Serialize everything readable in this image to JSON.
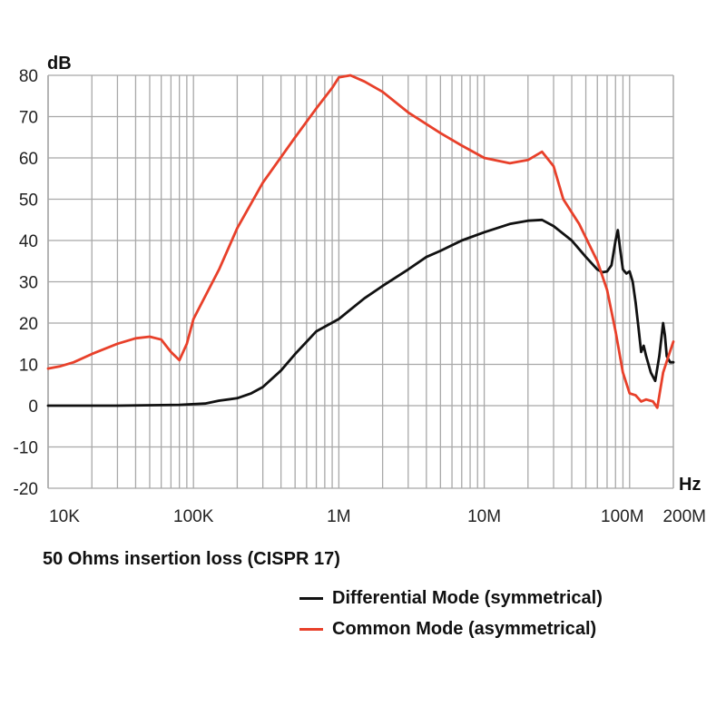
{
  "caption": "50 Ohms insertion loss (CISPR 17)",
  "colors": {
    "differential": "#111111",
    "common": "#e8402a",
    "grid": "#a8a8a8"
  },
  "chart_data": {
    "type": "line",
    "title": "50 Ohms insertion loss (CISPR 17)",
    "xlabel": "Hz",
    "ylabel": "dB",
    "x_scale": "log",
    "xlim": [
      10000,
      200000000
    ],
    "ylim": [
      -20,
      80
    ],
    "grid": true,
    "legend_position": "bottom-right",
    "x_ticks": [
      {
        "value": 10000,
        "label": "10K"
      },
      {
        "value": 100000,
        "label": "100K"
      },
      {
        "value": 1000000,
        "label": "1M"
      },
      {
        "value": 10000000,
        "label": "10M"
      },
      {
        "value": 100000000,
        "label": "100M"
      },
      {
        "value": 200000000,
        "label": "200M"
      }
    ],
    "y_ticks": [
      {
        "value": -20,
        "label": "-20"
      },
      {
        "value": -10,
        "label": "-10"
      },
      {
        "value": 0,
        "label": "0"
      },
      {
        "value": 10,
        "label": "10"
      },
      {
        "value": 20,
        "label": "20"
      },
      {
        "value": 30,
        "label": "30"
      },
      {
        "value": 40,
        "label": "40"
      },
      {
        "value": 50,
        "label": "50"
      },
      {
        "value": 60,
        "label": "60"
      },
      {
        "value": 70,
        "label": "70"
      },
      {
        "value": 80,
        "label": "80"
      }
    ],
    "series": [
      {
        "name": "Differential Mode (symmetrical)",
        "color": "#111111",
        "points": [
          [
            10000,
            0
          ],
          [
            30000,
            0
          ],
          [
            80000,
            0.2
          ],
          [
            120000,
            0.5
          ],
          [
            150000,
            1.2
          ],
          [
            200000,
            1.8
          ],
          [
            250000,
            3
          ],
          [
            300000,
            4.5
          ],
          [
            400000,
            8.5
          ],
          [
            500000,
            12.5
          ],
          [
            700000,
            18
          ],
          [
            1000000,
            21
          ],
          [
            1500000,
            26
          ],
          [
            2000000,
            29
          ],
          [
            3000000,
            33
          ],
          [
            4000000,
            36
          ],
          [
            5000000,
            37.5
          ],
          [
            7000000,
            40
          ],
          [
            10000000,
            42
          ],
          [
            15000000,
            44
          ],
          [
            20000000,
            44.8
          ],
          [
            25000000,
            45
          ],
          [
            30000000,
            43.5
          ],
          [
            40000000,
            40
          ],
          [
            50000000,
            36
          ],
          [
            60000000,
            33
          ],
          [
            65000000,
            32.3
          ],
          [
            70000000,
            32.5
          ],
          [
            75000000,
            34
          ],
          [
            80000000,
            40
          ],
          [
            83000000,
            42.5
          ],
          [
            86000000,
            38
          ],
          [
            90000000,
            33
          ],
          [
            95000000,
            32
          ],
          [
            100000000,
            32.5
          ],
          [
            105000000,
            30
          ],
          [
            110000000,
            25
          ],
          [
            115000000,
            19
          ],
          [
            120000000,
            13
          ],
          [
            125000000,
            14.5
          ],
          [
            130000000,
            12
          ],
          [
            140000000,
            8
          ],
          [
            150000000,
            6
          ],
          [
            160000000,
            12
          ],
          [
            170000000,
            20
          ],
          [
            175000000,
            17
          ],
          [
            180000000,
            12
          ],
          [
            190000000,
            10.5
          ],
          [
            200000000,
            10.5
          ]
        ]
      },
      {
        "name": "Common Mode (asymmetrical)",
        "color": "#e8402a",
        "points": [
          [
            10000,
            9
          ],
          [
            12000,
            9.5
          ],
          [
            15000,
            10.5
          ],
          [
            20000,
            12.5
          ],
          [
            30000,
            15
          ],
          [
            40000,
            16.3
          ],
          [
            50000,
            16.7
          ],
          [
            60000,
            16
          ],
          [
            70000,
            13
          ],
          [
            80000,
            11
          ],
          [
            90000,
            15
          ],
          [
            100000,
            21
          ],
          [
            150000,
            33
          ],
          [
            200000,
            43
          ],
          [
            300000,
            54
          ],
          [
            500000,
            65
          ],
          [
            700000,
            72
          ],
          [
            900000,
            77
          ],
          [
            1000000,
            79.5
          ],
          [
            1200000,
            80
          ],
          [
            1500000,
            78.5
          ],
          [
            2000000,
            76
          ],
          [
            3000000,
            71
          ],
          [
            5000000,
            66
          ],
          [
            7000000,
            63
          ],
          [
            10000000,
            60
          ],
          [
            15000000,
            58.7
          ],
          [
            20000000,
            59.5
          ],
          [
            25000000,
            61.5
          ],
          [
            30000000,
            58
          ],
          [
            35000000,
            50
          ],
          [
            45000000,
            44
          ],
          [
            60000000,
            35
          ],
          [
            70000000,
            28
          ],
          [
            80000000,
            18
          ],
          [
            90000000,
            8
          ],
          [
            100000000,
            3
          ],
          [
            110000000,
            2.5
          ],
          [
            120000000,
            1
          ],
          [
            130000000,
            1.5
          ],
          [
            145000000,
            1
          ],
          [
            155000000,
            -0.5
          ],
          [
            170000000,
            8
          ],
          [
            185000000,
            12
          ],
          [
            200000000,
            15.5
          ]
        ]
      }
    ]
  }
}
